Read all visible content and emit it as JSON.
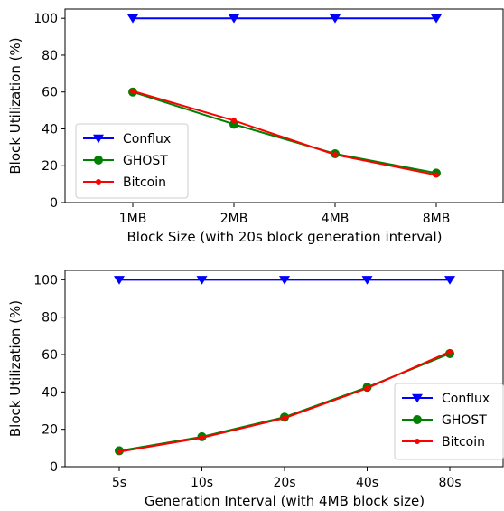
{
  "colors": {
    "conflux": "#0000ff",
    "ghost": "#008000",
    "bitcoin": "#ff0000",
    "axis": "#000000",
    "legend_border": "#cccccc"
  },
  "chart_data": [
    {
      "type": "line",
      "categories": [
        "1MB",
        "2MB",
        "4MB",
        "8MB"
      ],
      "xlabel": "Block Size (with 20s block generation interval)",
      "ylabel": "Block Utilization (%)",
      "ylim": [
        0,
        105
      ],
      "yticks": [
        "0",
        "20",
        "40",
        "60",
        "80",
        "100"
      ],
      "grid": false,
      "legend_position": "center-left",
      "series": [
        {
          "name": "Conflux",
          "values": [
            100,
            100,
            100,
            100
          ],
          "marker": "triangle-down",
          "color": "#0000ff"
        },
        {
          "name": "GHOST",
          "values": [
            60,
            42.5,
            26.5,
            16
          ],
          "marker": "circle",
          "color": "#008000"
        },
        {
          "name": "Bitcoin",
          "values": [
            60.5,
            44.5,
            26,
            15
          ],
          "marker": "small-circle",
          "color": "#ff0000"
        }
      ]
    },
    {
      "type": "line",
      "categories": [
        "5s",
        "10s",
        "20s",
        "40s",
        "80s"
      ],
      "xlabel": "Generation Interval (with 4MB block size)",
      "ylabel": "Block Utilization (%)",
      "ylim": [
        0,
        105
      ],
      "yticks": [
        "0",
        "20",
        "40",
        "60",
        "80",
        "100"
      ],
      "grid": false,
      "legend_position": "lower-right",
      "series": [
        {
          "name": "Conflux",
          "values": [
            100,
            100,
            100,
            100,
            100
          ],
          "marker": "triangle-down",
          "color": "#0000ff"
        },
        {
          "name": "GHOST",
          "values": [
            8.5,
            16,
            26.5,
            42.5,
            60.5
          ],
          "marker": "circle",
          "color": "#008000"
        },
        {
          "name": "Bitcoin",
          "values": [
            8,
            15.5,
            26,
            42,
            61.5
          ],
          "marker": "small-circle",
          "color": "#ff0000"
        }
      ]
    }
  ]
}
